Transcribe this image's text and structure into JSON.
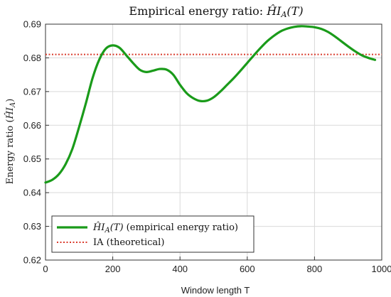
{
  "chart_data": {
    "type": "line",
    "title": "Empirical energy ratio: ĤI_A(T)",
    "title_parts": {
      "prefix": "Empirical energy ratio: ",
      "symbol_base": "ĤI",
      "symbol_sub": "A",
      "symbol_arg": "(T)"
    },
    "xlabel": "Window length T",
    "ylabel": "Energy ratio (ĤI_A)",
    "ylabel_parts": {
      "prefix": "Energy ratio (",
      "symbol_base": "ĤI",
      "symbol_sub": "A",
      "suffix": ")"
    },
    "xlim": [
      0,
      1000
    ],
    "ylim": [
      0.62,
      0.69
    ],
    "xticks": [
      0,
      200,
      400,
      600,
      800,
      1000
    ],
    "yticks": [
      0.62,
      0.63,
      0.64,
      0.65,
      0.66,
      0.67,
      0.68,
      0.69
    ],
    "xtick_labels": [
      "0",
      "200",
      "400",
      "600",
      "800",
      "1000"
    ],
    "ytick_labels": [
      "0.62",
      "0.63",
      "0.64",
      "0.65",
      "0.66",
      "0.67",
      "0.68",
      "0.69"
    ],
    "grid": true,
    "legend_position": "bottom-left",
    "series": [
      {
        "name": "ĤI_A(T) (empirical energy ratio)",
        "name_parts": {
          "symbol_base": "ĤI",
          "symbol_sub": "A",
          "symbol_arg": "(T)",
          "suffix": " (empirical energy ratio)"
        },
        "color": "#1a9b1a",
        "style": "solid",
        "x": [
          0,
          20,
          40,
          60,
          80,
          100,
          120,
          140,
          160,
          180,
          200,
          220,
          240,
          260,
          280,
          300,
          320,
          340,
          360,
          380,
          400,
          420,
          440,
          460,
          480,
          500,
          520,
          540,
          560,
          580,
          600,
          620,
          640,
          660,
          680,
          700,
          720,
          740,
          760,
          780,
          800,
          820,
          840,
          860,
          880,
          900,
          920,
          940,
          960,
          980
        ],
        "y": [
          0.643,
          0.6438,
          0.6455,
          0.6485,
          0.653,
          0.6595,
          0.6665,
          0.674,
          0.6795,
          0.6828,
          0.6837,
          0.683,
          0.6808,
          0.6785,
          0.6765,
          0.6758,
          0.6762,
          0.6767,
          0.6765,
          0.675,
          0.672,
          0.6695,
          0.668,
          0.6672,
          0.6673,
          0.6683,
          0.67,
          0.672,
          0.674,
          0.6762,
          0.6785,
          0.6808,
          0.683,
          0.685,
          0.6866,
          0.6879,
          0.6887,
          0.6892,
          0.6894,
          0.6893,
          0.6891,
          0.6886,
          0.6877,
          0.6864,
          0.6849,
          0.6834,
          0.682,
          0.6808,
          0.68,
          0.6794
        ]
      },
      {
        "name": "IA (theoretical)",
        "color": "#d93a2b",
        "style": "dotted",
        "x": [
          0,
          1000
        ],
        "y": [
          0.681,
          0.681
        ]
      }
    ]
  }
}
